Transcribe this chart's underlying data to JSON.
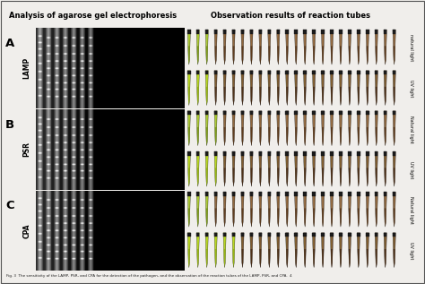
{
  "title_left": "Analysis of agarose gel electrophoresis",
  "title_right": "Observation results of reaction tubes",
  "rows": [
    {
      "label": "A",
      "method": "LAMP",
      "right_labels": [
        "natural light",
        "UV light"
      ],
      "n_green_nat": 3,
      "n_green_uv": 3,
      "n_total": 24
    },
    {
      "label": "B",
      "method": "PSR",
      "right_labels": [
        "Natural light",
        "UV light"
      ],
      "n_green_nat": 4,
      "n_green_uv": 4,
      "n_total": 24
    },
    {
      "label": "C",
      "method": "CPA",
      "right_labels": [
        "Natural light",
        "UV light"
      ],
      "n_green_nat": 3,
      "n_green_uv": 6,
      "n_total": 24
    }
  ],
  "caption": "Fig. 3  The sensitivity of the LAMP, PSR, and CPA for the detection of the pathogen, and the observation of the reaction tubes of the LAMP, PSR, and CPA.  4",
  "bg_color": "#f0eeeb",
  "figsize": [
    4.74,
    3.17
  ],
  "dpi": 100
}
